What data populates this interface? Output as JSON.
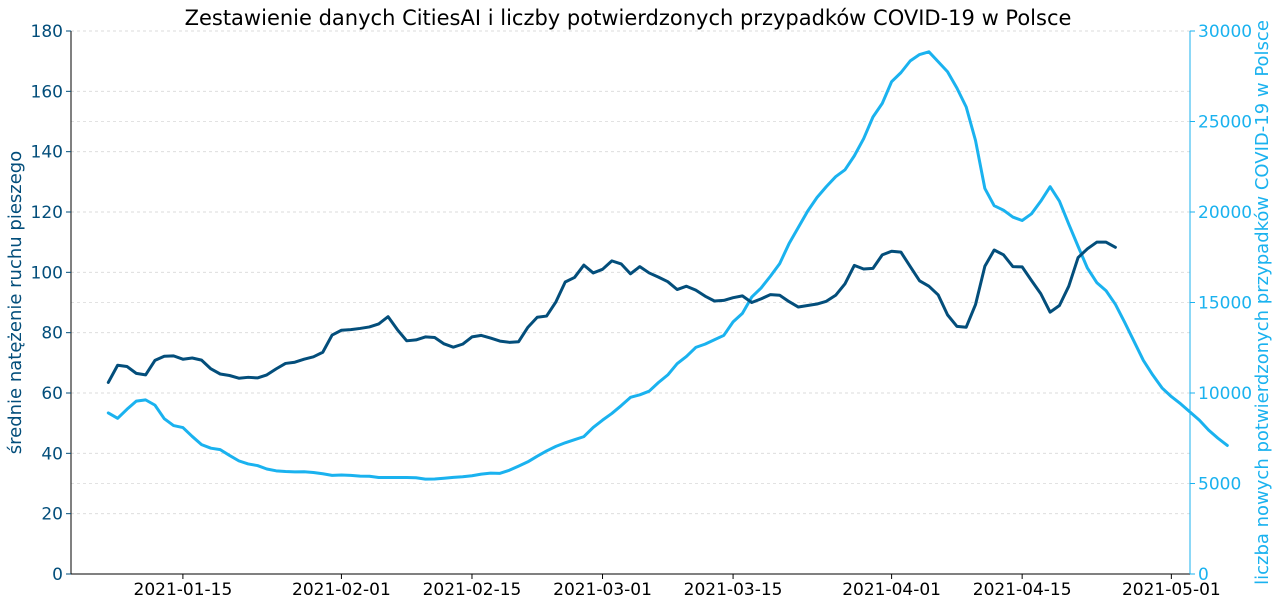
{
  "chart_data": {
    "type": "line",
    "title": "Zestawienie danych CitiesAI i liczby potwierdzonych przypadków COVID-19 w Polsce",
    "xlabel": "",
    "ylabel_left": "średnie natężenie ruchu pieszego",
    "ylabel_right": "liczba nowych potwierdzonych przypadków COVID-19 w Polsce",
    "ylim_left": [
      0,
      180
    ],
    "ylim_right": [
      0,
      30000
    ],
    "xlim": [
      "2021-01-03",
      "2021-05-03"
    ],
    "x_ticks": [
      "2021-01-15",
      "2021-02-01",
      "2021-02-15",
      "2021-03-01",
      "2021-03-15",
      "2021-04-01",
      "2021-04-15",
      "2021-05-01"
    ],
    "y_ticks_left": [
      "0",
      "20",
      "40",
      "60",
      "80",
      "100",
      "120",
      "140",
      "160",
      "180"
    ],
    "y_ticks_right": [
      "0",
      "5000",
      "10000",
      "15000",
      "20000",
      "25000",
      "30000"
    ],
    "grid": "horizontal-dashed",
    "colors": {
      "left": "#034e7b",
      "right": "#1ab2ef"
    },
    "series": [
      {
        "axis": "left",
        "start": "2021-01-07",
        "values": [
          63.5,
          69.2,
          68.8,
          66.5,
          66.0,
          70.8,
          72.2,
          72.3,
          71.2,
          71.6,
          70.9,
          68.0,
          66.3,
          65.8,
          64.9,
          65.2,
          65.0,
          66.0,
          68.0,
          69.8,
          70.2,
          71.2,
          72.0,
          73.5,
          79.2,
          80.8,
          81.0,
          81.4,
          81.9,
          82.9,
          85.3,
          81.0,
          77.3,
          77.6,
          78.6,
          78.4,
          76.3,
          75.2,
          76.2,
          78.6,
          79.1,
          78.2,
          77.2,
          76.8,
          77.0,
          81.8,
          85.1,
          85.5,
          90.2,
          96.8,
          98.3,
          102.4,
          99.8,
          101.0,
          103.8,
          102.8,
          99.5,
          101.9,
          99.8,
          98.4,
          96.9,
          94.3,
          95.4,
          94.1,
          92.1,
          90.5,
          90.7,
          91.6,
          92.2,
          90.0,
          91.2,
          92.6,
          92.4,
          90.3,
          88.5,
          89.0,
          89.5,
          90.4,
          92.4,
          96.2,
          102.3,
          101.1,
          101.3,
          105.8,
          107.0,
          106.7,
          101.9,
          97.2,
          95.4,
          92.5,
          85.9,
          82.1,
          81.8,
          89.3,
          102.0,
          107.4,
          105.8,
          101.9,
          101.8,
          97.3,
          92.9,
          86.8,
          89.0,
          95.4,
          104.9,
          107.8,
          110.0,
          110.0,
          108.3
        ]
      },
      {
        "axis": "right",
        "start": "2021-01-07",
        "values": [
          8900,
          8600,
          9100,
          9550,
          9620,
          9330,
          8580,
          8200,
          8090,
          7600,
          7150,
          6950,
          6870,
          6550,
          6250,
          6080,
          5990,
          5800,
          5700,
          5660,
          5640,
          5650,
          5610,
          5540,
          5450,
          5470,
          5450,
          5410,
          5400,
          5330,
          5330,
          5330,
          5330,
          5320,
          5240,
          5250,
          5290,
          5340,
          5370,
          5430,
          5520,
          5570,
          5560,
          5730,
          5960,
          6200,
          6510,
          6800,
          7050,
          7250,
          7420,
          7590,
          8100,
          8500,
          8870,
          9300,
          9760,
          9900,
          10100,
          10580,
          11000,
          11620,
          12020,
          12520,
          12700,
          12940,
          13180,
          13930,
          14400,
          15300,
          15800,
          16450,
          17150,
          18250,
          19150,
          20050,
          20800,
          21400,
          21950,
          22330,
          23100,
          24050,
          25250,
          26000,
          27200,
          27700,
          28350,
          28700,
          28850,
          28300,
          27750,
          26850,
          25800,
          23950,
          21300,
          20350,
          20100,
          19720,
          19530,
          19900,
          20600,
          21400,
          20600,
          19330,
          18100,
          16900,
          16100,
          15650,
          14900,
          13900,
          12850,
          11800,
          11000,
          10280,
          9800,
          9400,
          8950,
          8500,
          7950,
          7500,
          7100
        ]
      }
    ]
  }
}
